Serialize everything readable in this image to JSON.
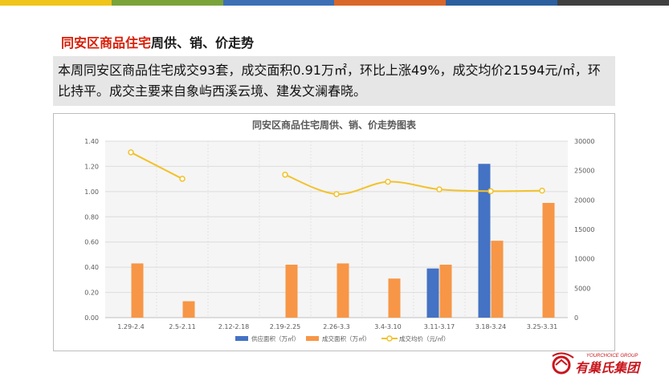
{
  "top_bar_colors": [
    "#f0c419",
    "#7aa33a",
    "#3d6fb5",
    "#d9672a",
    "#2b5f9e",
    "#404040"
  ],
  "heading": {
    "highlight": "同安区商品住宅",
    "rest": "周供、销、价走势"
  },
  "summary": "本周同安区商品住宅成交93套，成交面积0.91万㎡，环比上涨49%，成交均价21594元/㎡，环比持平。成交主要来自象屿西溪云境、建发文澜春晓。",
  "chart_data": {
    "type": "bar",
    "title": "同安区商品住宅周供、销、价走势图表",
    "categories": [
      "1.29-2.4",
      "2.5-2.11",
      "2.12-2.18",
      "2.19-2.25",
      "2.26-3.3",
      "3.4-3.10",
      "3.11-3.17",
      "3.18-3.24",
      "3.25-3.31"
    ],
    "y_left": {
      "range": [
        0,
        1.4
      ],
      "ticks": [
        "0.00",
        "0.20",
        "0.40",
        "0.60",
        "0.80",
        "1.00",
        "1.20",
        "1.40"
      ]
    },
    "y_right": {
      "range": [
        0,
        30000
      ],
      "ticks": [
        "0",
        "5000",
        "10000",
        "15000",
        "20000",
        "25000",
        "30000"
      ]
    },
    "series": [
      {
        "name": "供应面积（万㎡）",
        "kind": "bar",
        "axis": "left",
        "color": "#4472c4",
        "values": [
          null,
          null,
          null,
          null,
          null,
          null,
          0.39,
          1.22,
          null
        ]
      },
      {
        "name": "成交面积（万㎡）",
        "kind": "bar",
        "axis": "left",
        "color": "#f79646",
        "values": [
          0.43,
          0.13,
          null,
          0.42,
          0.43,
          0.31,
          0.42,
          0.61,
          0.91
        ]
      },
      {
        "name": "成交均价（元/㎡）",
        "kind": "line",
        "axis": "right",
        "color": "#f2c22c",
        "values": [
          28100,
          23600,
          null,
          24300,
          21000,
          23100,
          21800,
          21500,
          21594
        ]
      }
    ],
    "grid": true,
    "legend_position": "bottom"
  },
  "logo": {
    "tag": "YOURCHOICE GROUP",
    "name": "有巢氏集团",
    "color": "#c8161d"
  }
}
